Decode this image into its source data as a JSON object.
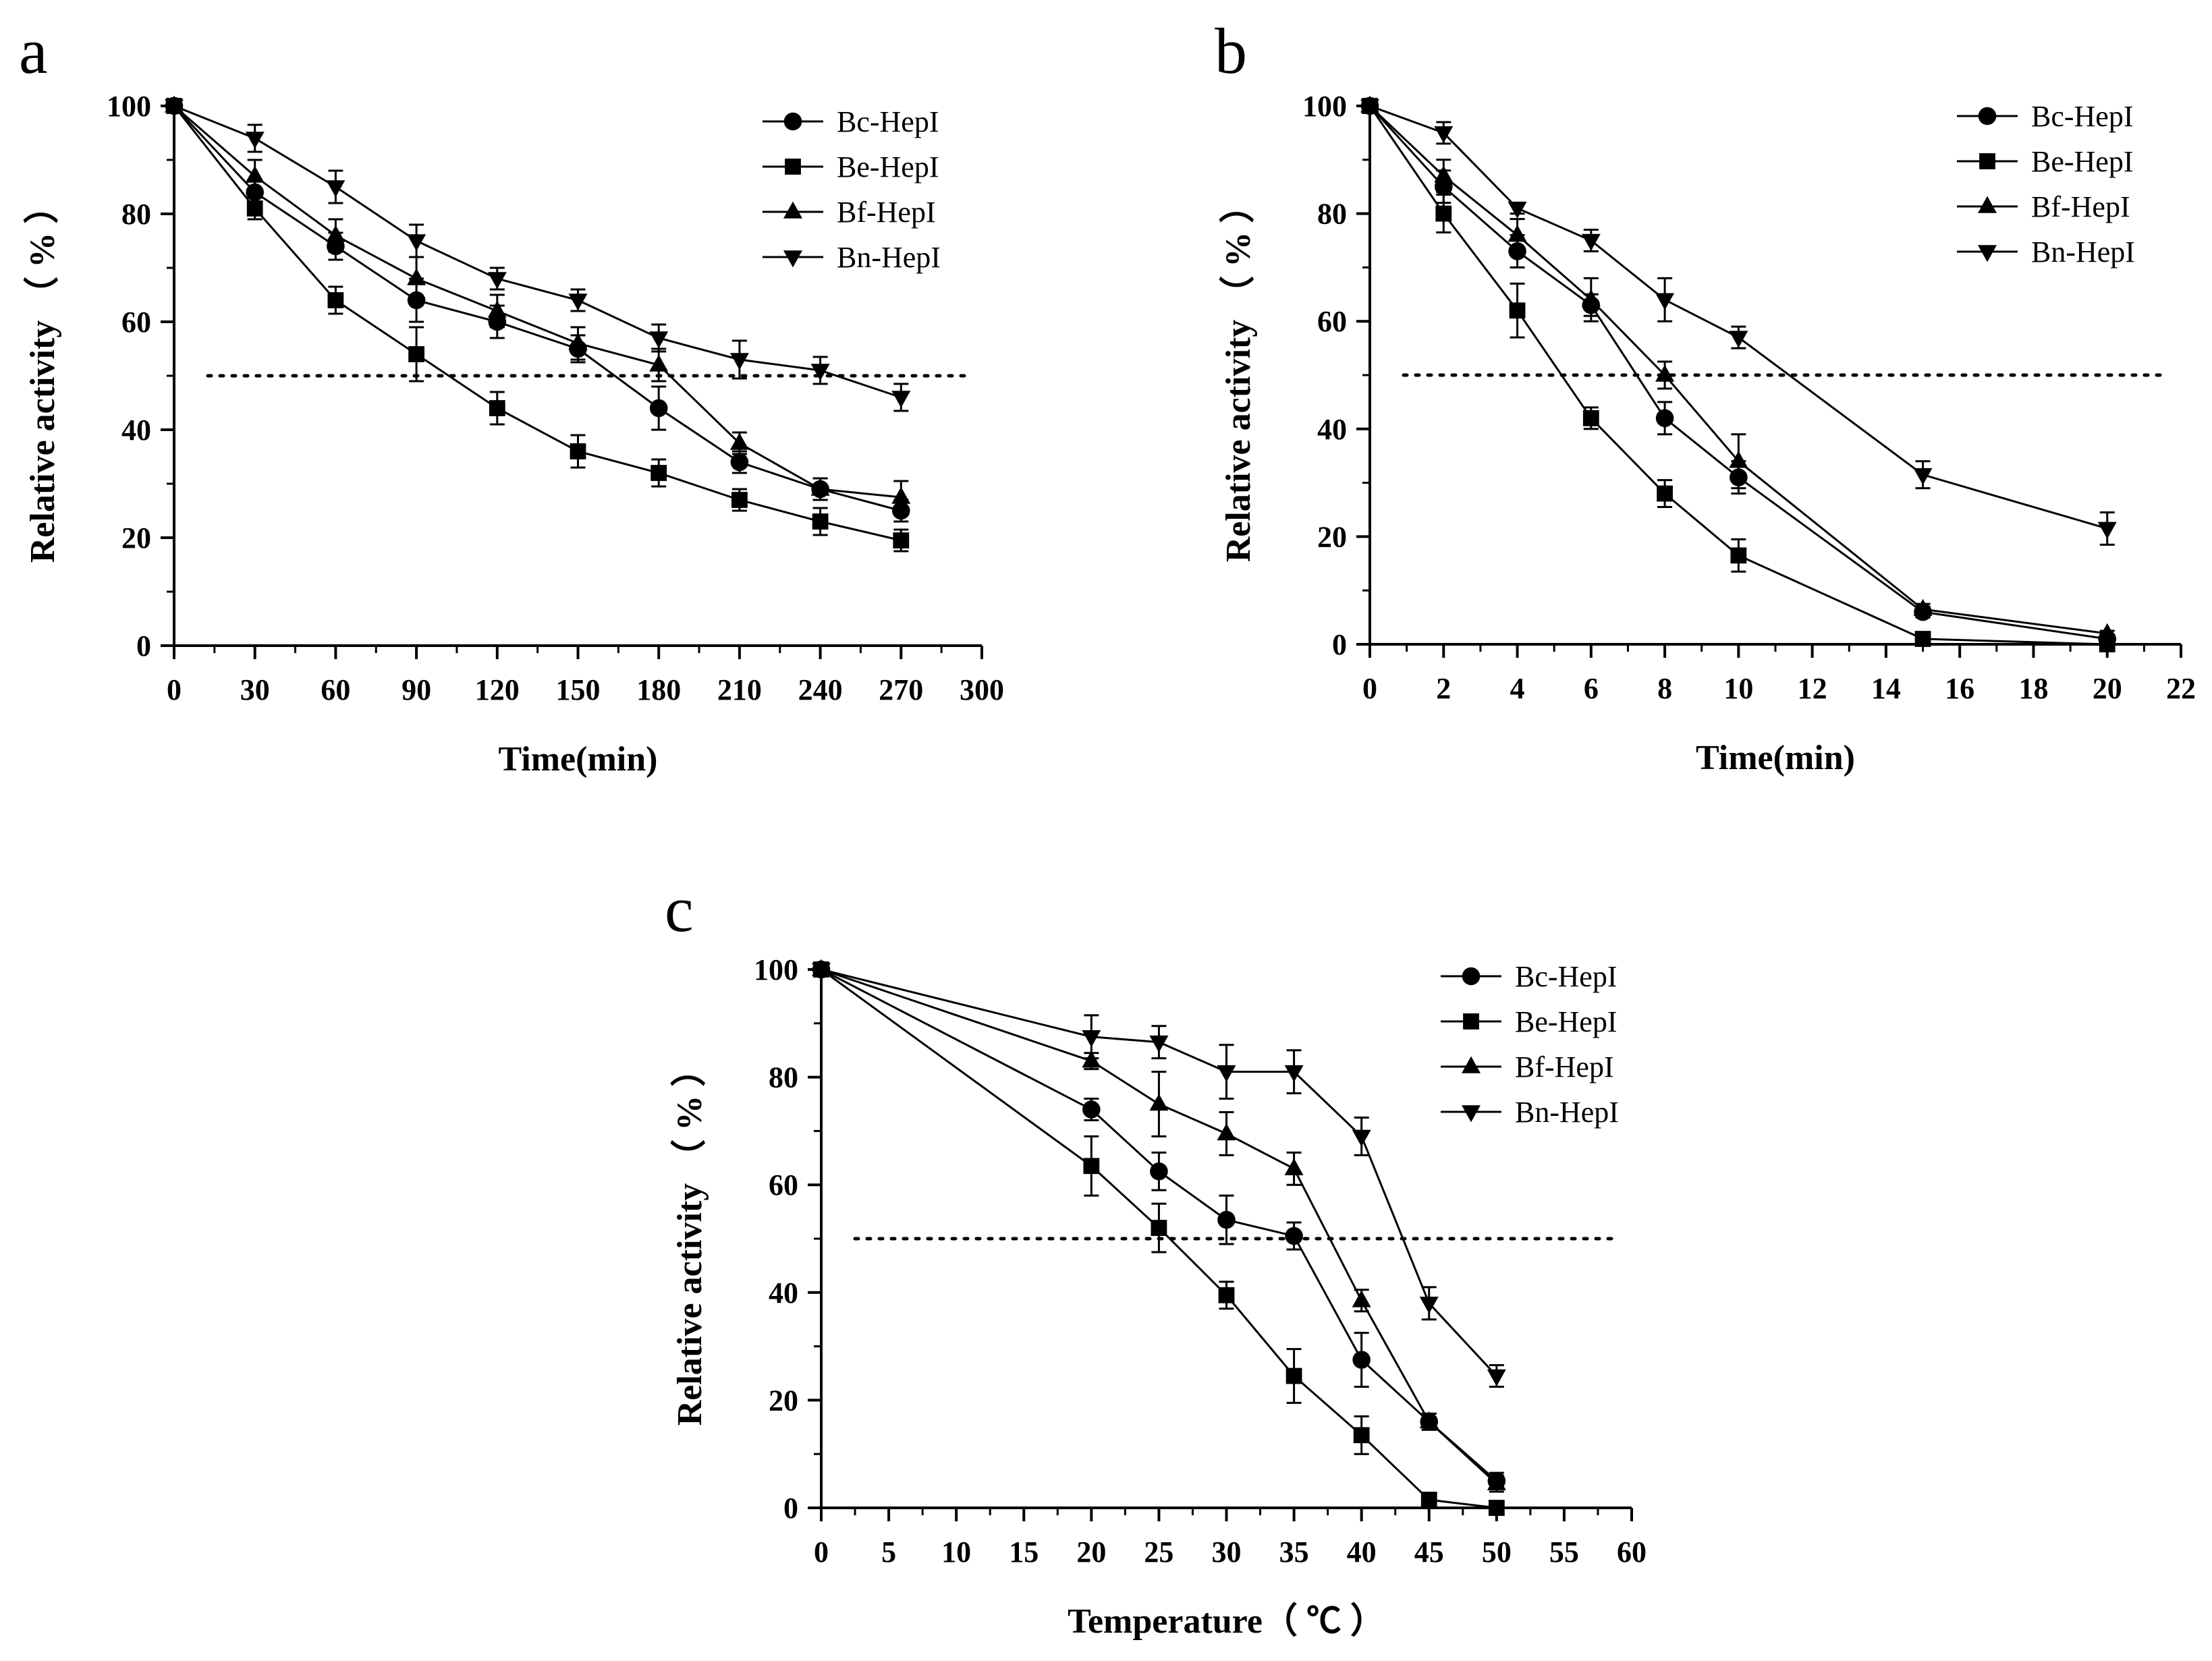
{
  "chart_data": [
    {
      "type": "line",
      "panel": "a",
      "xlabel": "Time(min)",
      "ylabel": "Relative activity （ % ）",
      "xlim": [
        0,
        300
      ],
      "ylim": [
        0,
        100
      ],
      "xticks": [
        0,
        30,
        60,
        90,
        120,
        150,
        180,
        210,
        240,
        270,
        300
      ],
      "yticks": [
        0,
        20,
        40,
        60,
        80,
        100
      ],
      "reference_line": 50,
      "legend_position": "top-right",
      "x": [
        0,
        30,
        60,
        90,
        120,
        150,
        180,
        210,
        240,
        270
      ],
      "series": [
        {
          "name": "Bc-HepI",
          "marker": "circle",
          "values": [
            100,
            84,
            74,
            64,
            60,
            55,
            44,
            34,
            29,
            25
          ],
          "errors": [
            0,
            2,
            2.5,
            4,
            3,
            2.5,
            4,
            2,
            2,
            2
          ]
        },
        {
          "name": "Be-HepI",
          "marker": "square",
          "values": [
            100,
            81,
            64,
            54,
            44,
            36,
            32,
            27,
            23,
            19.5
          ],
          "errors": [
            0,
            2,
            2.5,
            5,
            3,
            3,
            2.5,
            2,
            2.5,
            2
          ]
        },
        {
          "name": "Bf-HepI",
          "marker": "triangle-up",
          "values": [
            100,
            87,
            76,
            68,
            62,
            56,
            52,
            37.5,
            29,
            27.5
          ],
          "errors": [
            0,
            3,
            3,
            4,
            3,
            3,
            3,
            2,
            2,
            3
          ]
        },
        {
          "name": "Bn-HepI",
          "marker": "triangle-down",
          "values": [
            100,
            94,
            85,
            75,
            68,
            64,
            57,
            53,
            51,
            46
          ],
          "errors": [
            0,
            2.5,
            3,
            3,
            2,
            2,
            2.5,
            3.5,
            2.5,
            2.5
          ]
        }
      ]
    },
    {
      "type": "line",
      "panel": "b",
      "xlabel": "Time(min)",
      "ylabel": "Relative activity （ % ）",
      "xlim": [
        0,
        22
      ],
      "ylim": [
        0,
        100
      ],
      "xticks": [
        0,
        2,
        4,
        6,
        8,
        10,
        12,
        14,
        16,
        18,
        20,
        22
      ],
      "yticks": [
        0,
        20,
        40,
        60,
        80,
        100
      ],
      "reference_line": 50,
      "legend_position": "top-right",
      "x": [
        0,
        2,
        4,
        6,
        8,
        10,
        15,
        20
      ],
      "series": [
        {
          "name": "Bc-HepI",
          "marker": "circle",
          "values": [
            100,
            85,
            73,
            63,
            42,
            31,
            6,
            1
          ],
          "errors": [
            0,
            3,
            3,
            2,
            3,
            3,
            1,
            0.5
          ]
        },
        {
          "name": "Be-HepI",
          "marker": "square",
          "values": [
            100,
            80,
            62,
            42,
            28,
            16.5,
            1,
            0
          ],
          "errors": [
            0,
            3.5,
            5,
            2,
            2.5,
            3,
            0.5,
            0
          ]
        },
        {
          "name": "Bf-HepI",
          "marker": "triangle-up",
          "values": [
            100,
            87,
            76,
            64,
            50,
            34,
            6.5,
            2
          ],
          "errors": [
            0,
            3,
            3,
            4,
            2.5,
            5,
            1,
            0.5
          ]
        },
        {
          "name": "Bn-HepI",
          "marker": "triangle-down",
          "values": [
            100,
            95,
            81,
            75,
            64,
            57,
            31.5,
            21.5
          ],
          "errors": [
            0,
            2,
            1,
            2,
            4,
            2,
            2.5,
            3
          ]
        }
      ]
    },
    {
      "type": "line",
      "panel": "c",
      "xlabel": "Temperature（ ℃ ）",
      "ylabel": "Relative activity （ % ）",
      "xlim": [
        0,
        60
      ],
      "ylim": [
        0,
        100
      ],
      "xticks": [
        0,
        5,
        10,
        15,
        20,
        25,
        30,
        35,
        40,
        45,
        50,
        55,
        60
      ],
      "yticks": [
        0,
        20,
        40,
        60,
        80,
        100
      ],
      "reference_line": 50,
      "legend_position": "top-right",
      "x": [
        0,
        20,
        25,
        30,
        35,
        40,
        45,
        50
      ],
      "series": [
        {
          "name": "Bc-HepI",
          "marker": "circle",
          "values": [
            100,
            74,
            62.5,
            53.5,
            50.5,
            27.5,
            16,
            5
          ],
          "errors": [
            0,
            2,
            3.5,
            4.5,
            2.5,
            5,
            1.5,
            1.5
          ]
        },
        {
          "name": "Be-HepI",
          "marker": "square",
          "values": [
            100,
            63.5,
            52,
            39.5,
            24.5,
            13.5,
            1.5,
            0
          ],
          "errors": [
            0,
            5.5,
            4.5,
            2.5,
            5,
            3.5,
            0.5,
            0
          ]
        },
        {
          "name": "Bf-HepI",
          "marker": "triangle-up",
          "values": [
            100,
            83,
            75,
            69.5,
            63,
            38.5,
            16,
            4.5
          ],
          "errors": [
            0,
            1.5,
            6,
            4,
            3,
            2,
            1.5,
            1.5
          ]
        },
        {
          "name": "Bn-HepI",
          "marker": "triangle-down",
          "values": [
            100,
            87.5,
            86.5,
            81,
            81,
            69,
            38,
            24.5
          ],
          "errors": [
            0,
            4,
            3,
            5,
            4,
            3.5,
            3,
            2
          ]
        }
      ]
    }
  ]
}
